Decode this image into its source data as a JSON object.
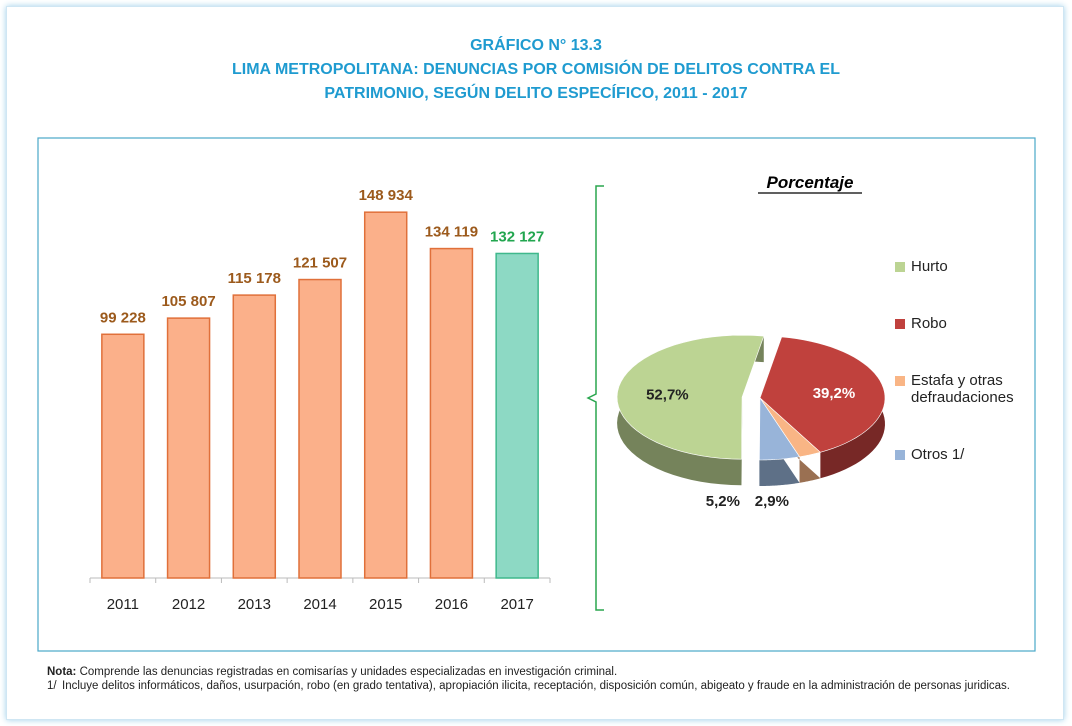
{
  "header": {
    "lines": [
      "GRÁFICO N° 13.3",
      "LIMA METROPOLITANA: DENUNCIAS POR COMISIÓN DE DELITOS CONTRA EL",
      "PATRIMONIO, SEGÚN DELITO ESPECÍFICO,  2011 - 2017"
    ]
  },
  "chart_data": [
    {
      "type": "bar",
      "categories": [
        "2011",
        "2012",
        "2013",
        "2014",
        "2015",
        "2016",
        "2017"
      ],
      "values": [
        99228,
        105807,
        115178,
        121507,
        148934,
        134119,
        132127
      ],
      "value_labels": [
        "99 228",
        "105 807",
        "115 178",
        "121 507",
        "148 934",
        "134 119",
        "132 127"
      ],
      "colors": [
        "#fbb08a",
        "#fbb08a",
        "#fbb08a",
        "#fbb08a",
        "#fbb08a",
        "#fbb08a",
        "#8dd9c4"
      ],
      "label_colors": [
        "#9c5a1c",
        "#9c5a1c",
        "#9c5a1c",
        "#9c5a1c",
        "#9c5a1c",
        "#9c5a1c",
        "#22a64f"
      ],
      "ylim": [
        0,
        160000
      ]
    },
    {
      "type": "pie",
      "title": "Porcentaje",
      "categories": [
        "Hurto",
        "Robo",
        "Estafa y otras defraudaciones",
        "Otros 1/"
      ],
      "values": [
        52.7,
        39.2,
        2.9,
        5.2
      ],
      "value_labels": [
        "52,7%",
        "39,2%",
        "2,9%",
        "5,2%"
      ],
      "colors": [
        "#bcd493",
        "#c0413d",
        "#f9b585",
        "#98b4d9"
      ],
      "exploded": "Hurto"
    }
  ],
  "notes": {
    "label": "Nota:",
    "text": " Comprende las denuncias registradas en comisarías y unidades especializadas en investigación criminal.",
    "footnote_mark": "1/",
    "footnote": "Incluye delitos informáticos, daños, usurpación, robo (en grado tentativa), apropiación ilicita, receptación, disposición común, abigeato y fraude en la administración de personas juridicas."
  }
}
